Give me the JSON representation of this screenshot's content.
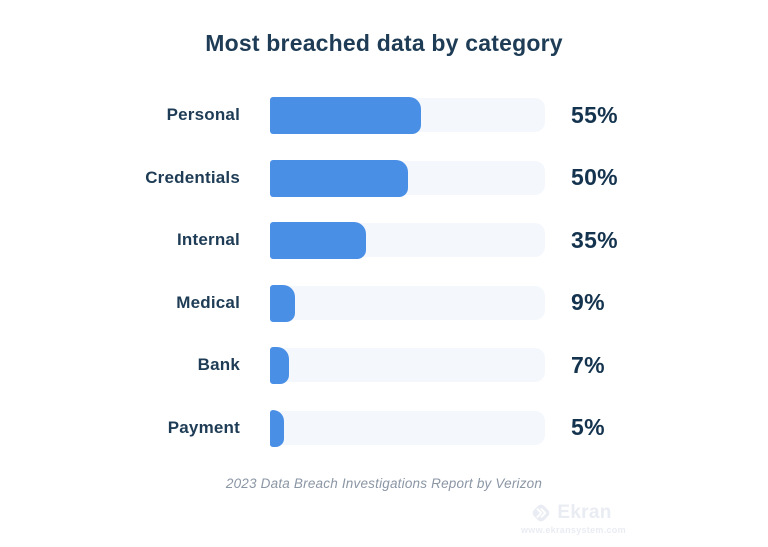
{
  "chart_data": {
    "type": "bar",
    "orientation": "horizontal",
    "title": "Most breached data by category",
    "categories": [
      "Personal",
      "Credentials",
      "Internal",
      "Medical",
      "Bank",
      "Payment"
    ],
    "values": [
      55,
      50,
      35,
      9,
      7,
      5
    ],
    "value_labels": [
      "55%",
      "50%",
      "35%",
      "9%",
      "7%",
      "5%"
    ],
    "unit": "%",
    "xlim": [
      0,
      100
    ],
    "grid": false,
    "legend": false,
    "source_note": "2023 Data Breach Investigations Report by Verizon"
  },
  "watermark": {
    "brand": "Ekran",
    "url": "www.ekransystem.com",
    "icon": "double-chevron-right-badge"
  },
  "colors": {
    "background": "#ffffff",
    "bar_fill": "#4a8fe6",
    "bar_track": "#f4f8fd",
    "title_text": "#1e3c55",
    "label_text": "#1e3c55",
    "value_text": "#14334e",
    "source_text": "#8b96a5",
    "watermark": "#e9ecf2"
  }
}
